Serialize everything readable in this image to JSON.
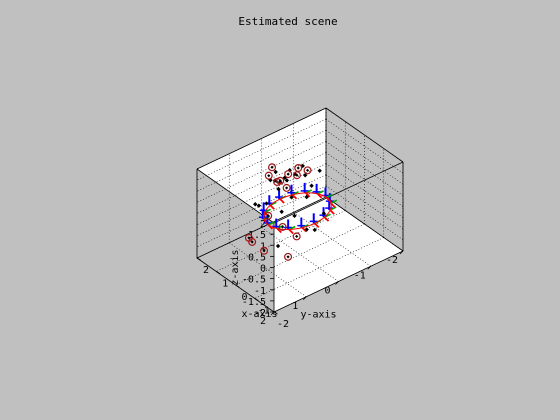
{
  "chart_data": {
    "type": "scatter3d",
    "title": "Estimated scene",
    "xlabel": "x-axis",
    "ylabel": "y-axis",
    "zlabel": "z-axis",
    "xlim": [
      -2,
      2
    ],
    "ylim": [
      -2,
      2
    ],
    "zlim": [
      -2,
      2
    ],
    "xticks": [
      -2,
      -1,
      0,
      1,
      2
    ],
    "yticks": [
      -2,
      -1,
      0,
      1,
      2
    ],
    "zticks": [
      -2,
      -1.5,
      -1,
      -0.5,
      0,
      0.5,
      1,
      1.5,
      2
    ],
    "grid": true,
    "colors": {
      "background": "#c0c0c0",
      "axes_face": "#ffffff",
      "points": "#000000",
      "circles": "#a01818",
      "camera_x_axis": "#ff0000",
      "camera_y_axis": "#00aa00",
      "camera_z_axis": "#0000ff"
    },
    "series": [
      {
        "marker": "dot",
        "points": [
          [
            0.45,
            0.05,
            1.55
          ],
          [
            0.15,
            -0.25,
            1.3
          ],
          [
            -0.35,
            -0.15,
            1.2
          ],
          [
            -0.6,
            0.15,
            1.05
          ],
          [
            0.2,
            0.55,
            1.2
          ],
          [
            -0.15,
            0.35,
            0.9
          ],
          [
            0.85,
            -0.1,
            0.75
          ],
          [
            1.35,
            -0.65,
            0.35
          ],
          [
            1.55,
            -0.45,
            0.2
          ],
          [
            1.45,
            -0.95,
            0.45
          ],
          [
            1.2,
            0.2,
            0.75
          ],
          [
            -1.1,
            0.45,
            0.1
          ],
          [
            -0.1,
            -0.55,
            1.45
          ],
          [
            0.55,
            0.45,
            1.3
          ],
          [
            0.15,
            0.95,
            0.85
          ],
          [
            0.65,
            1.0,
            0.55
          ],
          [
            1.3,
            0.5,
            -0.25
          ],
          [
            -0.4,
            -0.5,
            -0.25
          ],
          [
            0.2,
            0.05,
            -0.35
          ],
          [
            0.7,
            0.15,
            -0.4
          ],
          [
            -0.6,
            -0.1,
            -0.6
          ],
          [
            -0.2,
            0.8,
            -0.95
          ],
          [
            1.6,
            -0.2,
            0.6
          ],
          [
            1.7,
            -0.4,
            -0.05
          ]
        ]
      },
      {
        "marker": "circle",
        "points": [
          [
            -0.15,
            0.8,
            1.9
          ],
          [
            0.45,
            0.7,
            1.75
          ],
          [
            0.95,
            0.3,
            1.55
          ],
          [
            1.6,
            -0.9,
            0.3
          ],
          [
            1.45,
            -1.1,
            0.15
          ],
          [
            1.75,
            -0.95,
            -0.15
          ],
          [
            1.7,
            -0.6,
            -0.45
          ],
          [
            2.2,
            -0.7,
            -0.5
          ],
          [
            1.15,
            0.3,
            -0.75
          ],
          [
            -1.2,
            2.3,
            1.05
          ],
          [
            -1.2,
            2.2,
            0.8
          ],
          [
            -1.15,
            1.8,
            0.1
          ],
          [
            -1.0,
            0.7,
            -0.1
          ],
          [
            -0.05,
            0.4,
            -1.8
          ],
          [
            0.95,
            -0.2,
            0.9
          ],
          [
            0.4,
            0.3,
            -0.8
          ]
        ]
      }
    ],
    "camera_ring": {
      "center": [
        0.05,
        0.05,
        -0.05
      ],
      "radius": 0.9,
      "count": 16
    }
  }
}
